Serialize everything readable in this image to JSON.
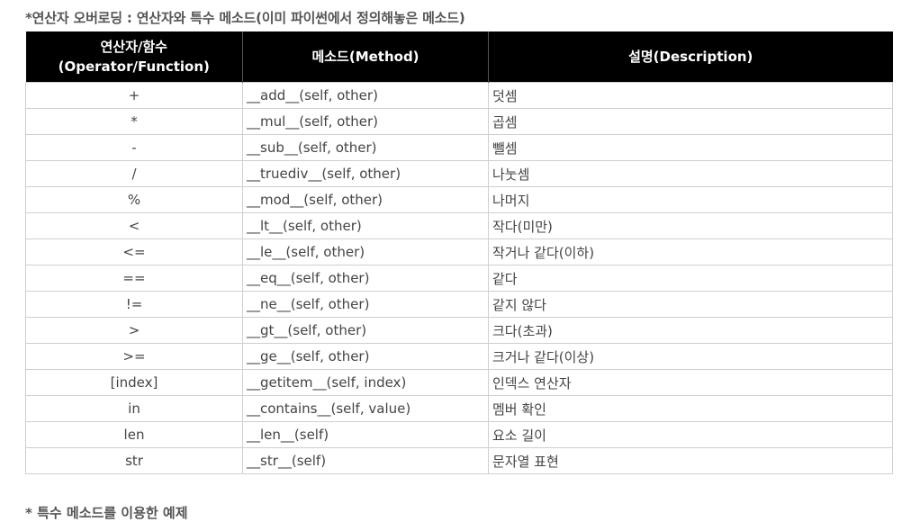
{
  "caption": "*연산자 오버로딩 : 연산자와 특수 메소드(이미 파이썬에서 정의해놓은 메소드)",
  "table": {
    "headers": {
      "operator_line1": "연산자/함수",
      "operator_line2": "(Operator/Function)",
      "method": "메소드(Method)",
      "description": "설명(Description)"
    },
    "rows": [
      {
        "op": "+",
        "method": "__add__(self, other)",
        "desc": "덧셈"
      },
      {
        "op": "*",
        "method": "__mul__(self, other)",
        "desc": "곱셈"
      },
      {
        "op": "-",
        "method": "__sub__(self, other)",
        "desc": "뺄셈"
      },
      {
        "op": "/",
        "method": "__truediv__(self, other)",
        "desc": "나눗셈"
      },
      {
        "op": "%",
        "method": "__mod__(self, other)",
        "desc": "나머지"
      },
      {
        "op": "<",
        "method": "__lt__(self, other)",
        "desc": "작다(미만)"
      },
      {
        "op": "<=",
        "method": "__le__(self, other)",
        "desc": "작거나 같다(이하)"
      },
      {
        "op": "==",
        "method": "__eq__(self, other)",
        "desc": "같다"
      },
      {
        "op": "!=",
        "method": "__ne__(self, other)",
        "desc": "같지 않다"
      },
      {
        "op": ">",
        "method": "__gt__(self, other)",
        "desc": "크다(초과)"
      },
      {
        "op": ">=",
        "method": "__ge__(self, other)",
        "desc": "크거나 같다(이상)"
      },
      {
        "op": "[index]",
        "method": "__getitem__(self, index)",
        "desc": "인덱스 연산자"
      },
      {
        "op": "in",
        "method": "__contains__(self, value)",
        "desc": "멤버 확인"
      },
      {
        "op": "len",
        "method": "__len__(self)",
        "desc": "요소 길이"
      },
      {
        "op": "str",
        "method": "__str__(self)",
        "desc": "문자열 표현"
      }
    ]
  },
  "footer_note": "* 특수 메소드를 이용한 예제"
}
